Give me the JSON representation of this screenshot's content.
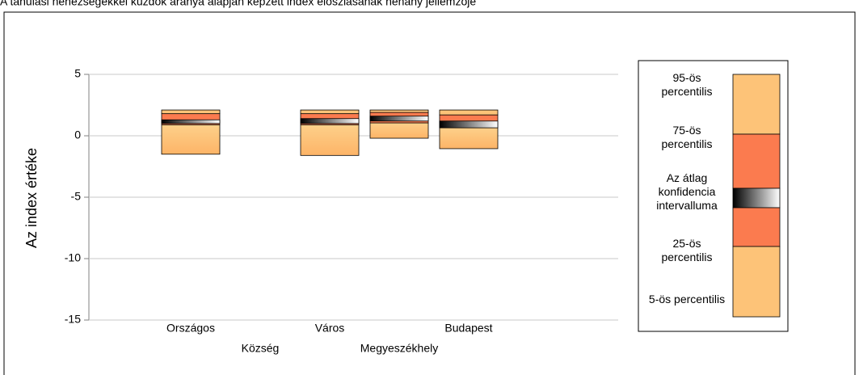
{
  "chart_data": {
    "type": "percentile-box",
    "title": "A tanulási nehézségekkel küzdők aránya alapján képzett index eloszlásának néhány jellemzője",
    "y_label": "Az index értéke",
    "categories": [
      "Országos",
      "Község",
      "Város",
      "Megyeszékhely",
      "Budapest"
    ],
    "p5": [
      -1.5,
      null,
      -1.6,
      -0.2,
      -1.05
    ],
    "p25": [
      0.9,
      null,
      0.9,
      1.05,
      0.65
    ],
    "ci_low": [
      1.0,
      null,
      1.0,
      1.2,
      0.65
    ],
    "ci_high": [
      1.3,
      null,
      1.4,
      1.6,
      1.2
    ],
    "p75": [
      1.8,
      null,
      1.8,
      1.9,
      1.7
    ],
    "p95": [
      2.1,
      null,
      2.1,
      2.1,
      2.1
    ],
    "ylim": [
      -15,
      5
    ],
    "yticks": [
      -15,
      -10,
      -5,
      0,
      5
    ],
    "grid": true,
    "colors": {
      "outer": "#fdc378",
      "inner": "#fb7b4f"
    },
    "legend": [
      "95-ös percentilis",
      "75-ös percentilis",
      "Az átlag konfidencia intervalluma",
      "25-ös percentilis",
      "5-ös percentilis"
    ]
  }
}
